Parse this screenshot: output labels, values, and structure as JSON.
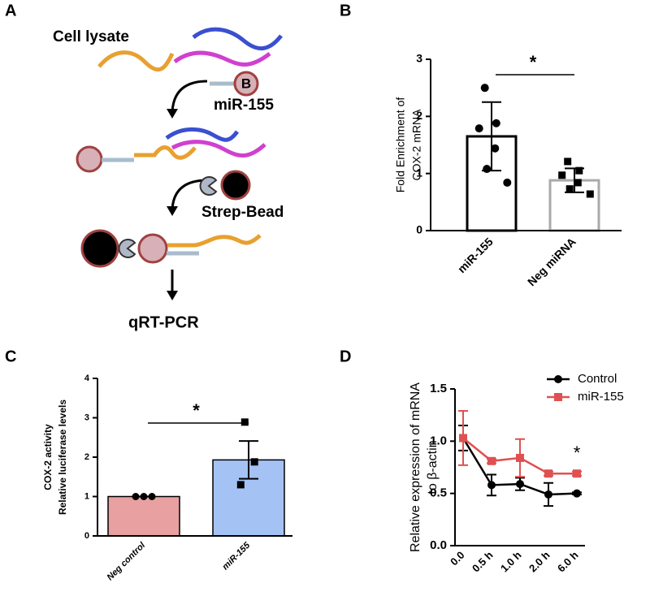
{
  "panel_labels": [
    "A",
    "B",
    "C",
    "D"
  ],
  "diagram": {
    "labels": [
      "Cell lysate",
      "B",
      "miR-155",
      "Strep-Bead",
      "qRT-PCR"
    ]
  },
  "chart_data": [
    {
      "type": "bar",
      "ylabel": [
        "Fold Enrichment of",
        "COX-2 mRNA"
      ],
      "categories": [
        "miR-155",
        "Neg miRNA"
      ],
      "values": [
        1.65,
        0.88
      ],
      "errors": [
        0.6,
        0.21
      ],
      "points": [
        [
          2.5,
          1.88,
          1.79,
          1.44,
          1.08,
          0.84
        ],
        [
          1.21,
          1.05,
          0.97,
          0.84,
          0.73,
          0.64
        ]
      ],
      "markers": [
        "circle",
        "square"
      ],
      "edge_colors": [
        "#000000",
        "#aaaaaa"
      ],
      "ylim": [
        0,
        3
      ],
      "yticks": [
        0,
        1,
        2,
        3
      ],
      "significance": "*"
    },
    {
      "type": "bar",
      "ylabel": [
        "COX-2 activity",
        "Relative luciferase levels"
      ],
      "categories": [
        "Neg control",
        "miR-155"
      ],
      "values": [
        1,
        1.93
      ],
      "errors": [
        0,
        0.48
      ],
      "points": [
        [
          1,
          1,
          1
        ],
        [
          2.89,
          1.88,
          1.3
        ]
      ],
      "markers": [
        "circle",
        "square"
      ],
      "bar_colors": [
        "#e8a0a0",
        "#a4c2f4"
      ],
      "ylim": [
        0,
        4
      ],
      "yticks": [
        0,
        1,
        2,
        3,
        4
      ],
      "significance": "*"
    },
    {
      "type": "line",
      "ylabel": [
        "Relative expression of mRNA",
        "to β-actin"
      ],
      "categories": [
        "0.0",
        "0.5 h",
        "1.0 h",
        "2.0 h",
        "6.0 h"
      ],
      "series": [
        {
          "name": "Control",
          "color": "#000000",
          "marker": "circle",
          "values": [
            1.03,
            0.58,
            0.59,
            0.49,
            0.5
          ],
          "errors": [
            0.12,
            0.1,
            0.06,
            0.11,
            0.01
          ]
        },
        {
          "name": "miR-155",
          "color": "#e05050",
          "marker": "square",
          "values": [
            1.03,
            0.81,
            0.84,
            0.69,
            0.69
          ],
          "errors": [
            0.26,
            0.02,
            0.18,
            0.02,
            0.02
          ]
        }
      ],
      "ylim": [
        0,
        1.5
      ],
      "yticks": [
        {
          "value": 0,
          "label": "0.0"
        },
        {
          "value": 0.5,
          "label": "0.5"
        },
        {
          "value": 1,
          "label": "1.0"
        },
        {
          "value": 1.5,
          "label": "1.5"
        }
      ],
      "annotation": "*",
      "legend": "upper right"
    }
  ]
}
